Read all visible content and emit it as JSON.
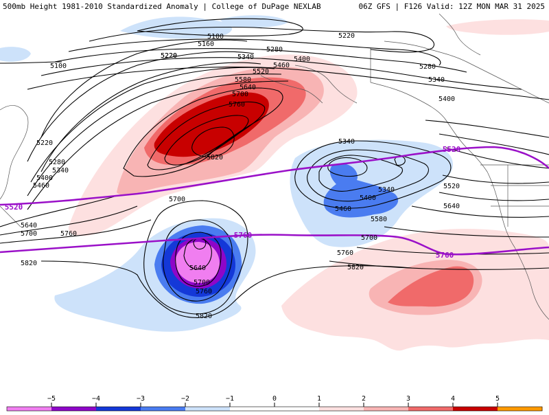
{
  "title": {
    "left": "500mb Height 1981-2010 Standardized Anomaly | College of DuPage NEXLAB",
    "right": "06Z GFS | F126 Valid: 12Z MON MAR 31 2025"
  },
  "colors": {
    "n5": "#f07ef0",
    "n4": "#8e06c8",
    "n3": "#1438d8",
    "n2": "#4a7cf0",
    "n1": "#cde2fa",
    "p1": "#fde0e0",
    "p2": "#f8b4b4",
    "p3": "#f06a6a",
    "p4": "#c80000",
    "p5": "#ff9a00",
    "purple_line": "#9a10c8"
  },
  "contour_labels": [
    "5100",
    "5160",
    "5220",
    "5280",
    "5340",
    "5400",
    "5460",
    "5520",
    "5580",
    "5640",
    "5700",
    "5760",
    "5820"
  ],
  "contours_west": [
    "5100",
    "5220",
    "5220",
    "5280",
    "5340",
    "5400",
    "5460",
    "5640",
    "5700",
    "5760",
    "5820"
  ],
  "contours_north": [
    "5100",
    "5160",
    "5220",
    "5220",
    "5280",
    "5340",
    "5400",
    "5460",
    "5520",
    "5580",
    "5640",
    "5700",
    "5760",
    "5820"
  ],
  "contours_east": [
    "5280",
    "5340",
    "5400",
    "5340",
    "5340",
    "5400",
    "5460",
    "5520",
    "5580",
    "5640",
    "5700",
    "5760",
    "5820"
  ],
  "contours_south": [
    "5700",
    "5640",
    "5700",
    "5760",
    "5820",
    "5820"
  ],
  "purple_labels": {
    "a": "5520",
    "b": "5760",
    "c": "5520",
    "d": "5760"
  },
  "colorbar": {
    "labels": [
      "−5",
      "−4",
      "−3",
      "−2",
      "−1",
      "0",
      "1",
      "2",
      "3",
      "4",
      "5"
    ]
  }
}
